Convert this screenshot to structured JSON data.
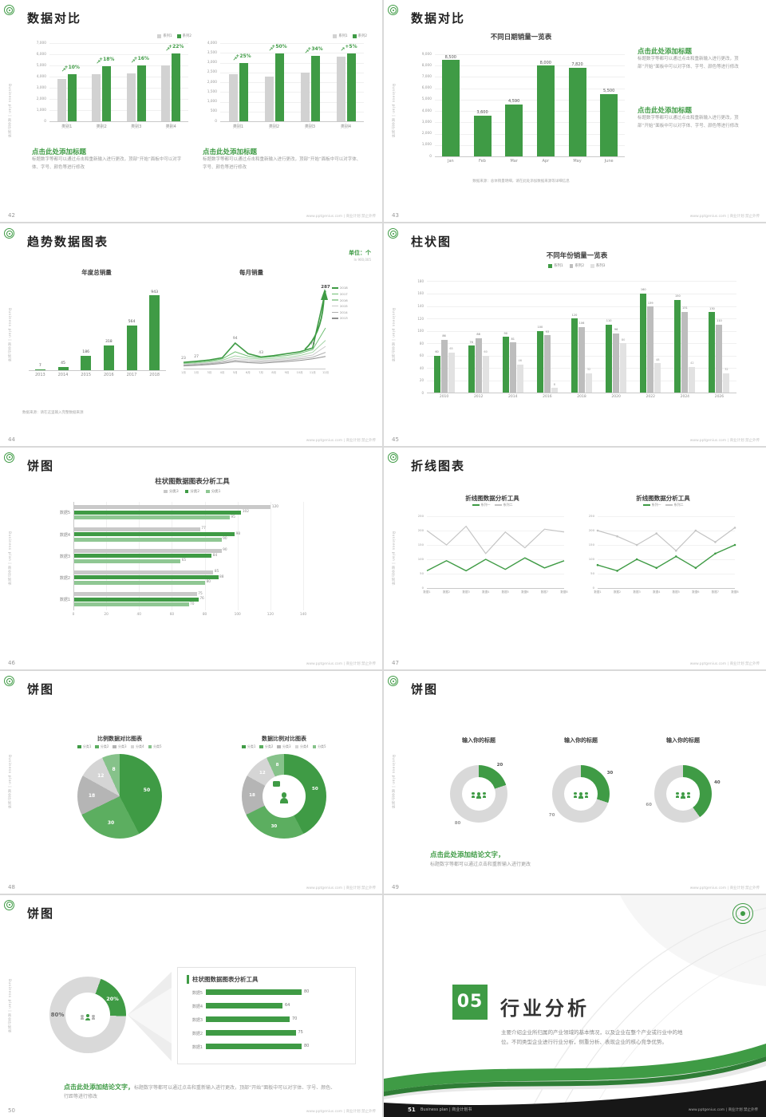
{
  "sidebar_text": "Business plan | 商业计划书",
  "footer_text": "www.pptgenius.com | 商业计划 禁止外传",
  "colors": {
    "green": "#3f9b45",
    "green_mid": "#5cae60",
    "green_light": "#8fc793",
    "gray_bar": "#d2d2d2",
    "gray_mid": "#bdbdbd",
    "gray_light": "#e2e2e2"
  },
  "slides": {
    "s42": {
      "page": "42",
      "title": "数据对比",
      "chart1": {
        "type": "bar",
        "legend": [
          "系列1",
          "系列2"
        ],
        "y_ticks": [
          "7,000",
          "6,000",
          "5,000",
          "4,000",
          "3,000",
          "2,000",
          "1,000",
          "0"
        ],
        "max": 7000,
        "categories": [
          "类别1",
          "类别2",
          "类别3",
          "类别4"
        ],
        "series1": [
          3800,
          4200,
          4300,
          5000
        ],
        "series2": [
          4200,
          4950,
          5000,
          6100
        ],
        "pct": [
          "+10%",
          "+18%",
          "+16%",
          "+22%"
        ]
      },
      "chart2": {
        "type": "bar",
        "legend": [
          "系列1",
          "系列2"
        ],
        "y_ticks": [
          "4,000",
          "3,500",
          "3,000",
          "2,500",
          "2,000",
          "1,500",
          "1,000",
          "500",
          "0"
        ],
        "max": 4000,
        "categories": [
          "类别1",
          "类别2",
          "类别3",
          "类别4"
        ],
        "series1": [
          2400,
          2300,
          2500,
          3300
        ],
        "series2": [
          3000,
          3450,
          3350,
          3450
        ],
        "pct": [
          "+25%",
          "+50%",
          "+34%",
          "+5%"
        ]
      },
      "blocks": [
        {
          "heading": "点击此处添加标题",
          "body": "标题数字等都可以通过点击和重新输入进行更改，顶部“开始”面板中可以对字体、字号、颜色等进行修改"
        },
        {
          "heading": "点击此处添加标题",
          "body": "标题数字等都可以通过点击和重新输入进行更改，顶部“开始”面板中可以对字体、字号、颜色等进行修改"
        }
      ]
    },
    "s43": {
      "page": "43",
      "title": "数据对比",
      "type": "bar",
      "chart_title": "不同日期销量一览表",
      "y_ticks": [
        "9,000",
        "8,000",
        "7,000",
        "6,000",
        "5,000",
        "4,000",
        "3,000",
        "2,000",
        "1,000",
        "0"
      ],
      "max": 9000,
      "categories": [
        "Jan",
        "Feb",
        "Mar",
        "Apr",
        "May",
        "June"
      ],
      "values": [
        8500,
        3600,
        4590,
        8000,
        7820,
        5500
      ],
      "value_labels": [
        "8,500",
        "3,600",
        "4,590",
        "8,000",
        "7,820",
        "5,500"
      ],
      "blocks": [
        {
          "heading": "点击此处添加标题",
          "body": "标题数字等都可以通过点击和重新输入进行更改，顶部“开始”面板中可以对字体、字号、颜色等进行修改"
        },
        {
          "heading": "点击此处添加标题",
          "body": "标题数字等都可以通过点击和重新输入进行更改，顶部“开始”面板中可以对字体、字号、颜色等进行修改"
        }
      ],
      "source": "数据来源：总体销量明细，请在此处添加数据来源等详细信息"
    },
    "s44": {
      "page": "44",
      "title": "趋势数据图表",
      "unit": "单位：个",
      "unit_sub": "In 900,005",
      "bar": {
        "type": "bar",
        "title": "年度总销量",
        "y_ticks": [],
        "max": 1000,
        "categories": [
          "2013",
          "2014",
          "2015",
          "2016",
          "2017",
          "2018"
        ],
        "values": [
          7,
          45,
          186,
          318,
          564,
          943
        ]
      },
      "line": {
        "type": "line",
        "title": "每月销量",
        "x": [
          "1月",
          "2月",
          "3月",
          "4月",
          "5月",
          "6月",
          "7月",
          "8月",
          "9月",
          "10月",
          "11月",
          "12月"
        ],
        "max": 300,
        "legend": [
          "2018",
          "2017",
          "2016",
          "2015",
          "2014",
          "2013"
        ],
        "series": [
          [
            23,
            27,
            32,
            40,
            94,
            55,
            43,
            48,
            55,
            62,
            76,
            287
          ],
          [
            20,
            24,
            28,
            36,
            62,
            46,
            40,
            44,
            48,
            56,
            70,
            150
          ],
          [
            18,
            21,
            25,
            31,
            47,
            39,
            35,
            38,
            41,
            48,
            60,
            104
          ],
          [
            15,
            18,
            21,
            26,
            38,
            33,
            30,
            33,
            36,
            42,
            50,
            82
          ],
          [
            12,
            15,
            18,
            23,
            31,
            27,
            25,
            28,
            31,
            36,
            42,
            60
          ],
          [
            10,
            12,
            15,
            19,
            26,
            22,
            20,
            23,
            26,
            30,
            36,
            45
          ]
        ],
        "annotations": [
          {
            "i": 0,
            "s": 0,
            "text": "23"
          },
          {
            "i": 1,
            "s": 0,
            "text": "27"
          },
          {
            "i": 4,
            "s": 0,
            "text": "94"
          },
          {
            "i": 6,
            "s": 0,
            "text": "43"
          },
          {
            "i": 10,
            "s": 0,
            "text": "76"
          },
          {
            "i": 11,
            "s": 0,
            "text": "287",
            "big": true
          }
        ]
      },
      "source": "数据来源：请在这里输入完整数据来源"
    },
    "s45": {
      "page": "45",
      "title": "柱状图",
      "type": "bar",
      "chart_title": "不同年份销量一览表",
      "legend": [
        "系列1",
        "系列2",
        "系列3"
      ],
      "y_ticks": [
        "180",
        "160",
        "140",
        "120",
        "100",
        "80",
        "60",
        "40",
        "20",
        "0"
      ],
      "max": 180,
      "categories": [
        "2010",
        "2012",
        "2014",
        "2016",
        "2018",
        "2020",
        "2022",
        "2024",
        "2026"
      ],
      "series": [
        [
          60,
          76,
          90,
          100,
          120,
          110,
          160,
          150,
          130
        ],
        [
          86,
          88,
          81,
          93,
          106,
          96,
          139,
          131,
          110
        ],
        [
          65,
          60,
          46,
          8,
          32,
          80,
          48,
          42,
          32
        ]
      ]
    },
    "s46": {
      "page": "46",
      "title": "饼图",
      "type": "hbar",
      "chart_title": "柱状图数据图表分析工具",
      "legend": [
        "分类3",
        "分类2",
        "分类1"
      ],
      "rows": [
        "数据5",
        "数据4",
        "数据3",
        "数据2",
        "数据1"
      ],
      "series": [
        [
          120,
          77,
          90,
          85,
          75
        ],
        [
          102,
          98,
          84,
          88,
          76
        ],
        [
          95,
          90,
          65,
          80,
          70
        ]
      ],
      "x_ticks": [
        0,
        20,
        40,
        60,
        80,
        100,
        120,
        140
      ]
    },
    "s47": {
      "page": "47",
      "title": "折线图表",
      "panels": [
        {
          "type": "line",
          "title": "折线图数据分析工具",
          "legend": [
            "系列一",
            "系列二"
          ],
          "x": [
            "数据1",
            "数据2",
            "数据3",
            "数据4",
            "数据5",
            "数据6",
            "数据7",
            "数据8"
          ],
          "y_ticks": [
            "250",
            "200",
            "150",
            "100",
            "50",
            "0"
          ],
          "max": 250,
          "series": [
            [
              60,
              95,
              60,
              100,
              65,
              105,
              70,
              95
            ],
            [
              200,
              150,
              215,
              120,
              195,
              140,
              205,
              195
            ]
          ]
        },
        {
          "type": "line",
          "title": "折线图数据分析工具",
          "legend": [
            "系列一",
            "系列二"
          ],
          "x": [
            "数据1",
            "数据2",
            "数据3",
            "数据4",
            "数据5",
            "数据6",
            "数据7",
            "数据8"
          ],
          "y_ticks": [
            "250",
            "200",
            "150",
            "100",
            "50",
            "0"
          ],
          "max": 250,
          "series": [
            [
              80,
              60,
              100,
              70,
              110,
              70,
              120,
              150
            ],
            [
              200,
              180,
              150,
              190,
              130,
              200,
              160,
              210
            ]
          ]
        }
      ]
    },
    "s48": {
      "page": "48",
      "title": "饼图",
      "pies": [
        {
          "type": "pie",
          "title": "比例数据对比图表",
          "legend": [
            "分类1",
            "分类2",
            "分类3",
            "分类4",
            "分类5"
          ],
          "values": [
            50,
            30,
            18,
            12,
            8
          ],
          "labels": [
            "50",
            "30",
            "18",
            "12",
            "8"
          ]
        },
        {
          "type": "donut",
          "title": "数据比例对比图表",
          "legend": [
            "分类1",
            "分类2",
            "分类3",
            "分类4",
            "分类5"
          ],
          "values": [
            50,
            30,
            18,
            12,
            8
          ],
          "labels": [
            "50",
            "30",
            "18",
            "12",
            "8"
          ]
        }
      ]
    },
    "s49": {
      "page": "49",
      "title": "饼图",
      "donuts": [
        {
          "type": "donut",
          "title": "输入你的标题",
          "legend": [
            "分类1",
            "分类2"
          ],
          "values": [
            20,
            80
          ],
          "labels": [
            "20",
            "80"
          ]
        },
        {
          "type": "donut",
          "title": "输入你的标题",
          "legend": [
            "分类1",
            "分类2"
          ],
          "values": [
            30,
            70
          ],
          "labels": [
            "30",
            "70"
          ]
        },
        {
          "type": "donut",
          "title": "输入你的标题",
          "legend": [
            "分类1",
            "分类2"
          ],
          "values": [
            40,
            60
          ],
          "labels": [
            "40",
            "60"
          ]
        }
      ],
      "conclusion_heading": "点击此处添加结论文字，",
      "conclusion_body": "标题数字等都可以通过点击和重新输入进行更改"
    },
    "s50": {
      "page": "50",
      "title": "饼图",
      "donut": {
        "type": "donut",
        "values": [
          20,
          80
        ],
        "labels": [
          "20%",
          "80%"
        ]
      },
      "panel_title": "柱状图数据图表分析工具",
      "rows": [
        "数据5",
        "数据4",
        "数据3",
        "数据2",
        "数据1"
      ],
      "values": [
        80,
        64,
        70,
        75,
        80
      ],
      "max": 100,
      "conclusion_heading": "点击此处添加结论文字，",
      "conclusion_body": "标题数字等都可以通过点击和重新输入进行更改，顶部“开始”面板中可以对字体、字号、颜色、行距等进行修改"
    },
    "s51": {
      "page": "51",
      "number": "05",
      "title": "行业分析",
      "body": "主要介绍企业所归属的产业领域的基本情况，以及企业在整个产业或行业中的地位。不同类型企业进行行业分析，侧重分析、表现企业的核心竞争优势。",
      "footer_label": "Business plan | 商业计划书"
    }
  }
}
